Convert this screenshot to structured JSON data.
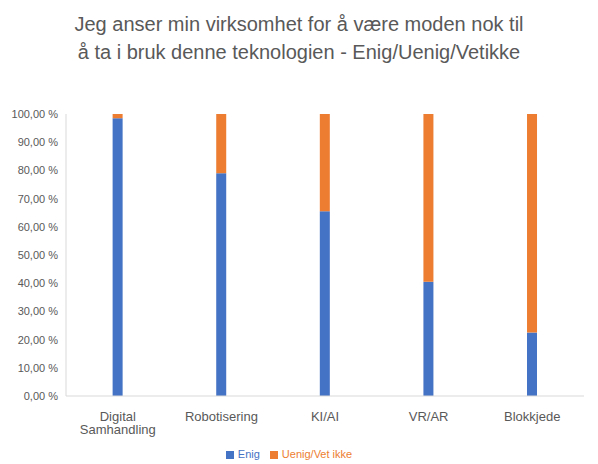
{
  "chart_data": {
    "type": "bar",
    "title": "Jeg anser min virksomhet for å være moden nok til å ta i bruk denne teknologien - Enig/Uenig/Vetikke",
    "categories": [
      "Digital Samhandling",
      "Robotisering",
      "KI/AI",
      "VR/AR",
      "Blokkjede"
    ],
    "series": [
      {
        "name": "Enig",
        "color": "#4472c4",
        "values": [
          98.5,
          79,
          65.5,
          40.5,
          22.5
        ]
      },
      {
        "name": "Uenig/Vet ikke",
        "color": "#ed7d31",
        "values": [
          1.5,
          21,
          34.5,
          59.5,
          77.5
        ]
      }
    ],
    "stacked": true,
    "ylim": [
      0,
      100
    ],
    "yticks": [
      {
        "value": 0,
        "label": "0,00 %"
      },
      {
        "value": 10,
        "label": "10,00 %"
      },
      {
        "value": 20,
        "label": "20,00 %"
      },
      {
        "value": 30,
        "label": "30,00 %"
      },
      {
        "value": 40,
        "label": "40,00 %"
      },
      {
        "value": 50,
        "label": "50,00 %"
      },
      {
        "value": 60,
        "label": "60,00 %"
      },
      {
        "value": 70,
        "label": "70,00 %"
      },
      {
        "value": 80,
        "label": "80,00 %"
      },
      {
        "value": 90,
        "label": "90,00 %"
      },
      {
        "value": 100,
        "label": "100,00 %"
      }
    ],
    "grid": false,
    "legend": "bottom"
  }
}
